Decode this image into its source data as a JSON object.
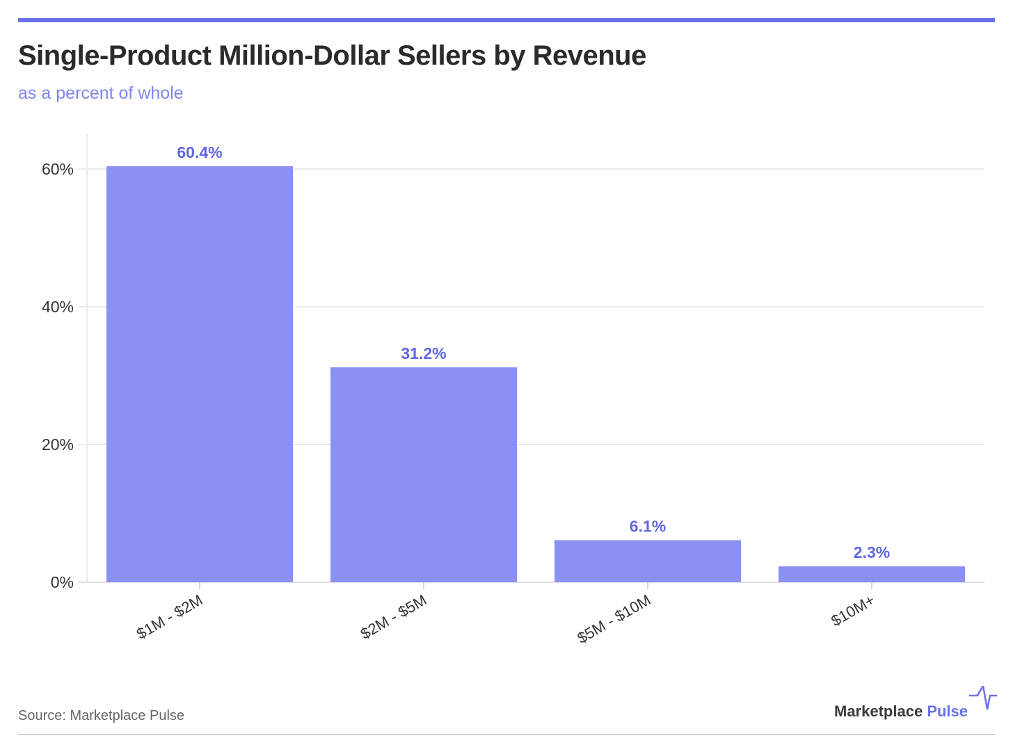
{
  "title": "Single-Product Million-Dollar Sellers by Revenue",
  "subtitle": "as a percent of whole",
  "source": "Source: Marketplace Pulse",
  "logo": {
    "word1": "Marketplace",
    "word2": "Pulse"
  },
  "colors": {
    "accent": "#6a71e8",
    "bar": "#8a91f0",
    "label": "#6068e0"
  },
  "chart_data": {
    "type": "bar",
    "title": "Single-Product Million-Dollar Sellers by Revenue",
    "subtitle": "as a percent of whole",
    "xlabel": "",
    "ylabel": "",
    "categories": [
      "$1M - $2M",
      "$2M - $5M",
      "$5M - $10M",
      "$10M+"
    ],
    "values": [
      60.4,
      31.2,
      6.1,
      2.3
    ],
    "data_labels": [
      "60.4%",
      "31.2%",
      "6.1%",
      "2.3%"
    ],
    "yticks": [
      0,
      20,
      40,
      60
    ],
    "ytick_labels": [
      "0%",
      "20%",
      "40%",
      "60%"
    ],
    "ylim": [
      0,
      65
    ],
    "grid": true,
    "legend": "none"
  }
}
